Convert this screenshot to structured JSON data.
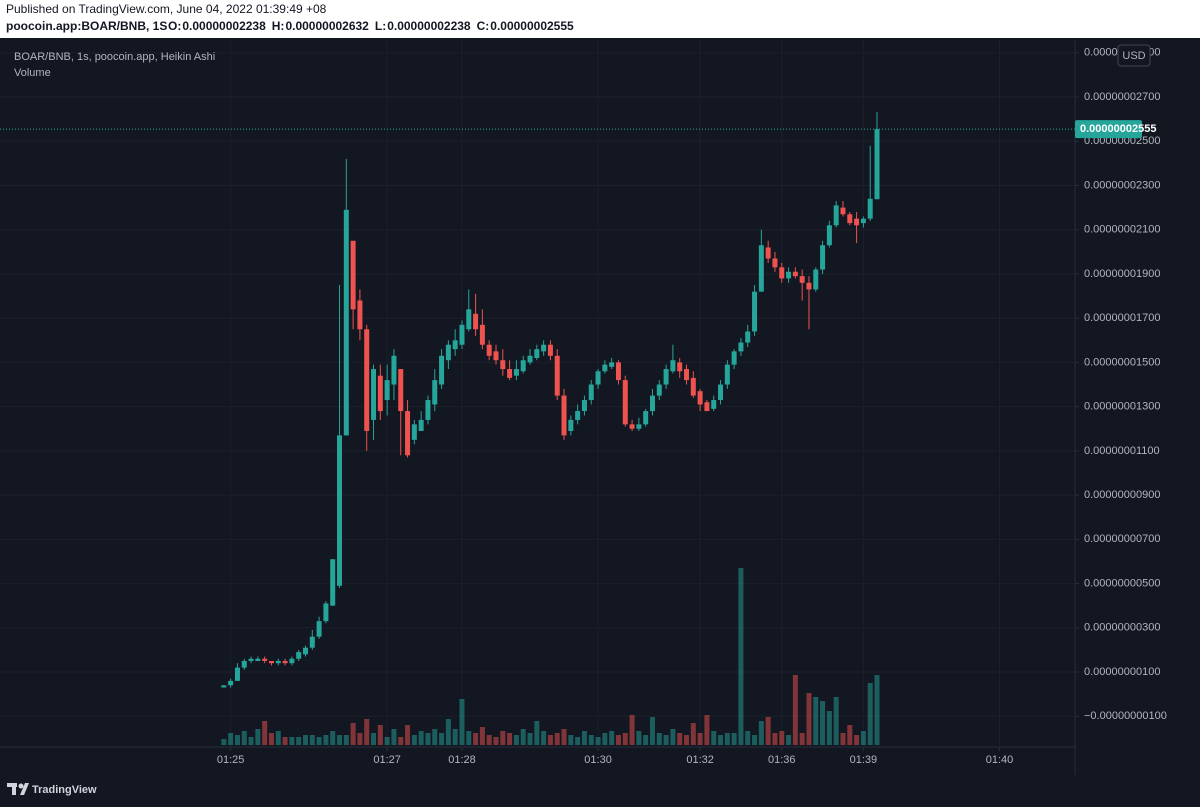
{
  "header": {
    "published": "Published on TradingView.com, June 04, 2022 01:39:49 +08",
    "symbol": "poocoin.app:BOAR/BNB, 1S",
    "ohlc": [
      {
        "key": "O:",
        "value": "0.00000002238"
      },
      {
        "key": "H:",
        "value": "0.00000002632"
      },
      {
        "key": "L:",
        "value": "0.00000002238"
      },
      {
        "key": "C:",
        "value": "0.00000002555"
      }
    ]
  },
  "brand": "TradingView",
  "chart_data": {
    "type": "candlestick",
    "series": [
      {
        "name": "BOAR/BNB, 1s, poocoin.app, Heikin Ashi",
        "up_color": "#26a69a",
        "down_color": "#ef5350",
        "open": [
          3e-10,
          4e-10,
          6e-10,
          1.2e-09,
          1.5e-09,
          1.5e-09,
          1.6e-09,
          1.5e-09,
          1.4e-09,
          1.5e-09,
          1.4e-09,
          1.6e-09,
          1.8e-09,
          2.1e-09,
          2.6e-09,
          3.3e-09,
          4e-09,
          4.9e-09,
          1.17e-08,
          2.05e-08,
          1.78e-08,
          1.65e-08,
          1.24e-08,
          1.44e-08,
          1.33e-08,
          1.4e-08,
          1.47e-08,
          1.28e-08,
          1.15e-08,
          1.19e-08,
          1.24e-08,
          1.31e-08,
          1.4e-08,
          1.51e-08,
          1.56e-08,
          1.58e-08,
          1.65e-08,
          1.72e-08,
          1.67e-08,
          1.58e-08,
          1.55e-08,
          1.51e-08,
          1.47e-08,
          1.44e-08,
          1.46e-08,
          1.5e-08,
          1.52e-08,
          1.55e-08,
          1.58e-08,
          1.53e-08,
          1.35e-08,
          1.19e-08,
          1.24e-08,
          1.28e-08,
          1.33e-08,
          1.4e-08,
          1.46e-08,
          1.48e-08,
          1.5e-08,
          1.42e-08,
          1.22e-08,
          1.2e-08,
          1.22e-08,
          1.28e-08,
          1.35e-08,
          1.4e-08,
          1.46e-08,
          1.5e-08,
          1.47e-08,
          1.43e-08,
          1.37e-08,
          1.32e-08,
          1.29e-08,
          1.33e-08,
          1.4e-08,
          1.49e-08,
          1.55e-08,
          1.59e-08,
          1.64e-08,
          1.82e-08,
          2.02e-08,
          1.97e-08,
          1.93e-08,
          1.88e-08,
          1.91e-08,
          1.89e-08,
          1.86e-08,
          1.83e-08,
          1.92e-08,
          2.03e-08,
          2.12e-08,
          2.2e-08,
          2.17e-08,
          2.15e-08,
          2.13e-08,
          2.15e-08,
          2.238e-08
        ],
        "high": [
          4e-10,
          7e-10,
          1.4e-09,
          1.6e-09,
          1.7e-09,
          1.7e-09,
          1.7e-09,
          1.5e-09,
          1.6e-09,
          1.6e-09,
          1.7e-09,
          2e-09,
          2.2e-09,
          2.9e-09,
          3.5e-09,
          4.2e-09,
          6.1e-09,
          1.85e-08,
          2.42e-08,
          2.05e-08,
          1.83e-08,
          1.67e-08,
          1.49e-08,
          1.49e-08,
          1.49e-08,
          1.56e-08,
          1.47e-08,
          1.33e-08,
          1.24e-08,
          1.28e-08,
          1.35e-08,
          1.47e-08,
          1.56e-08,
          1.6e-08,
          1.65e-08,
          1.69e-08,
          1.83e-08,
          1.81e-08,
          1.74e-08,
          1.6e-08,
          1.58e-08,
          1.56e-08,
          1.51e-08,
          1.51e-08,
          1.53e-08,
          1.56e-08,
          1.58e-08,
          1.6e-08,
          1.6e-08,
          1.56e-08,
          1.38e-08,
          1.26e-08,
          1.31e-08,
          1.35e-08,
          1.42e-08,
          1.47e-08,
          1.51e-08,
          1.52e-08,
          1.51e-08,
          1.44e-08,
          1.24e-08,
          1.25e-08,
          1.29e-08,
          1.38e-08,
          1.42e-08,
          1.49e-08,
          1.58e-08,
          1.52e-08,
          1.49e-08,
          1.46e-08,
          1.38e-08,
          1.33e-08,
          1.35e-08,
          1.42e-08,
          1.51e-08,
          1.56e-08,
          1.61e-08,
          1.67e-08,
          1.85e-08,
          2.1e-08,
          2.05e-08,
          2e-08,
          1.95e-08,
          1.93e-08,
          1.93e-08,
          1.92e-08,
          1.89e-08,
          1.93e-08,
          2.05e-08,
          2.14e-08,
          2.23e-08,
          2.23e-08,
          2.18e-08,
          2.18e-08,
          2.16e-08,
          2.48e-08,
          2.632e-08
        ],
        "low": [
          3e-10,
          3e-10,
          6e-10,
          1.1e-09,
          1.4e-09,
          1.5e-09,
          1.4e-09,
          1.3e-09,
          1.3e-09,
          1.3e-09,
          1.3e-09,
          1.5e-09,
          1.7e-09,
          2e-09,
          2.5e-09,
          3.2e-09,
          4e-09,
          4.8e-09,
          1.17e-08,
          1.65e-08,
          1.6e-08,
          1.1e-08,
          1.15e-08,
          1.24e-08,
          1.26e-08,
          1.33e-08,
          1.08e-08,
          1.07e-08,
          1.13e-08,
          1.19e-08,
          1.22e-08,
          1.28e-08,
          1.38e-08,
          1.47e-08,
          1.53e-08,
          1.56e-08,
          1.64e-08,
          1.62e-08,
          1.56e-08,
          1.51e-08,
          1.49e-08,
          1.44e-08,
          1.42e-08,
          1.42e-08,
          1.45e-08,
          1.49e-08,
          1.51e-08,
          1.53e-08,
          1.51e-08,
          1.33e-08,
          1.15e-08,
          1.17e-08,
          1.22e-08,
          1.26e-08,
          1.31e-08,
          1.38e-08,
          1.45e-08,
          1.47e-08,
          1.4e-08,
          1.21e-08,
          1.19e-08,
          1.19e-08,
          1.21e-08,
          1.26e-08,
          1.33e-08,
          1.38e-08,
          1.45e-08,
          1.43e-08,
          1.4e-08,
          1.34e-08,
          1.28e-08,
          1.28e-08,
          1.28e-08,
          1.31e-08,
          1.38e-08,
          1.47e-08,
          1.53e-08,
          1.57e-08,
          1.62e-08,
          1.82e-08,
          1.95e-08,
          1.91e-08,
          1.86e-08,
          1.86e-08,
          1.88e-08,
          1.78e-08,
          1.65e-08,
          1.82e-08,
          1.9e-08,
          2.02e-08,
          2.11e-08,
          2.16e-08,
          2.12e-08,
          2.04e-08,
          2.11e-08,
          2.14e-08,
          2.238e-08
        ],
        "close": [
          4e-10,
          6e-10,
          1.2e-09,
          1.5e-09,
          1.6e-09,
          1.6e-09,
          1.5e-09,
          1.4e-09,
          1.5e-09,
          1.4e-09,
          1.6e-09,
          1.9e-09,
          2.1e-09,
          2.6e-09,
          3.3e-09,
          4.1e-09,
          6.1e-09,
          1.17e-08,
          2.19e-08,
          1.74e-08,
          1.65e-08,
          1.19e-08,
          1.47e-08,
          1.28e-08,
          1.42e-08,
          1.53e-08,
          1.28e-08,
          1.08e-08,
          1.22e-08,
          1.24e-08,
          1.33e-08,
          1.42e-08,
          1.53e-08,
          1.58e-08,
          1.6e-08,
          1.67e-08,
          1.74e-08,
          1.65e-08,
          1.58e-08,
          1.53e-08,
          1.51e-08,
          1.47e-08,
          1.43e-08,
          1.47e-08,
          1.51e-08,
          1.53e-08,
          1.56e-08,
          1.58e-08,
          1.53e-08,
          1.35e-08,
          1.17e-08,
          1.24e-08,
          1.28e-08,
          1.33e-08,
          1.4e-08,
          1.46e-08,
          1.49e-08,
          1.5e-08,
          1.42e-08,
          1.22e-08,
          1.2e-08,
          1.22e-08,
          1.28e-08,
          1.35e-08,
          1.4e-08,
          1.47e-08,
          1.51e-08,
          1.46e-08,
          1.42e-08,
          1.35e-08,
          1.31e-08,
          1.28e-08,
          1.33e-08,
          1.4e-08,
          1.49e-08,
          1.55e-08,
          1.59e-08,
          1.64e-08,
          1.82e-08,
          2.03e-08,
          1.97e-08,
          1.93e-08,
          1.88e-08,
          1.91e-08,
          1.89e-08,
          1.86e-08,
          1.83e-08,
          1.92e-08,
          2.03e-08,
          2.12e-08,
          2.21e-08,
          2.17e-08,
          2.13e-08,
          2.12e-08,
          2.15e-08,
          2.24e-08,
          2.555e-08
        ]
      },
      {
        "name": "Volume",
        "up_color": "rgba(38,166,154,0.5)",
        "down_color": "rgba(239,83,80,0.5)",
        "values": [
          6,
          12,
          10,
          14,
          8,
          16,
          24,
          12,
          14,
          8,
          8,
          8,
          10,
          10,
          8,
          10,
          14,
          10,
          10,
          22,
          12,
          26,
          12,
          20,
          8,
          16,
          8,
          20,
          10,
          14,
          12,
          16,
          12,
          26,
          16,
          46,
          14,
          12,
          18,
          10,
          8,
          14,
          12,
          10,
          16,
          12,
          24,
          14,
          10,
          12,
          16,
          10,
          8,
          14,
          10,
          8,
          12,
          14,
          10,
          12,
          30,
          14,
          10,
          28,
          12,
          10,
          16,
          12,
          10,
          22,
          12,
          30,
          14,
          10,
          12,
          12,
          177,
          14,
          10,
          24,
          28,
          12,
          14,
          10,
          70,
          12,
          52,
          48,
          44,
          34,
          48,
          12,
          20,
          10,
          14,
          62,
          70
        ],
        "vlim": [
          0,
          200
        ]
      }
    ],
    "xlim": [
      -32.9,
      125.1
    ],
    "xticks": [
      {
        "value": 1,
        "label": "01:25"
      },
      {
        "value": 24,
        "label": "01:27"
      },
      {
        "value": 35,
        "label": "01:28"
      },
      {
        "value": 55,
        "label": "01:30"
      },
      {
        "value": 70,
        "label": "01:32"
      },
      {
        "value": 82,
        "label": "01:36"
      },
      {
        "value": 94,
        "label": "01:39"
      },
      {
        "value": 114,
        "label": "01:40"
      }
    ],
    "ylim": [
      -2.3e-09,
      2.958e-08
    ],
    "yticks": [
      {
        "value": 2.9e-08,
        "label": "0.00000002900"
      },
      {
        "value": 2.7e-08,
        "label": "0.00000002700"
      },
      {
        "value": 2.5e-08,
        "label": "0.00000002500"
      },
      {
        "value": 2.3e-08,
        "label": "0.00000002300"
      },
      {
        "value": 2.1e-08,
        "label": "0.00000002100"
      },
      {
        "value": 1.9e-08,
        "label": "0.00000001900"
      },
      {
        "value": 1.7e-08,
        "label": "0.00000001700"
      },
      {
        "value": 1.5e-08,
        "label": "0.00000001500"
      },
      {
        "value": 1.3e-08,
        "label": "0.00000001300"
      },
      {
        "value": 1.1e-08,
        "label": "0.00000001100"
      },
      {
        "value": 9e-09,
        "label": "0.00000000900"
      },
      {
        "value": 7e-09,
        "label": "0.00000000700"
      },
      {
        "value": 5e-09,
        "label": "0.00000000500"
      },
      {
        "value": 3e-09,
        "label": "0.00000000300"
      },
      {
        "value": 1e-09,
        "label": "0.00000000100"
      },
      {
        "value": -1e-09,
        "label": "−0.00000000100"
      }
    ],
    "last_price": {
      "value": 2.555e-08,
      "label": "0.00000002555",
      "color": "#26a69a"
    },
    "currency": "USD",
    "grid": true
  }
}
